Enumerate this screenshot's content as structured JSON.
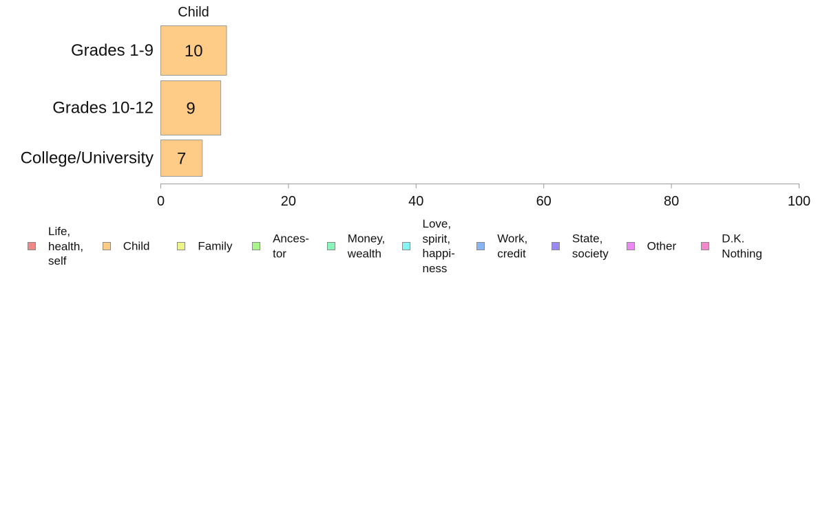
{
  "chart_data": {
    "type": "bar",
    "orientation": "horizontal",
    "panel_title": "Child",
    "categories": [
      "Grades 1-9",
      "Grades 10-12",
      "College/University"
    ],
    "series": [
      {
        "name": "Child",
        "color": "#ffcc88",
        "values": [
          10.3,
          9.4,
          6.5
        ],
        "labels": [
          "10",
          "9",
          "7"
        ]
      }
    ],
    "xlim": [
      0,
      100
    ],
    "xticks": [
      0,
      20,
      40,
      60,
      80,
      100
    ],
    "grid": false,
    "legend_position": "bottom"
  },
  "legend": [
    {
      "label": "Life,\nhealth,\nself",
      "color": "#f08888",
      "icon": "square-swatch"
    },
    {
      "label": "Child",
      "color": "#ffcc88",
      "icon": "square-swatch"
    },
    {
      "label": "Family",
      "color": "#eef588",
      "icon": "square-swatch"
    },
    {
      "label": "Ances-\ntor",
      "color": "#aaf588",
      "icon": "square-swatch"
    },
    {
      "label": "Money,\nwealth",
      "color": "#88f5bb",
      "icon": "square-swatch"
    },
    {
      "label": "Love,\nspirit,\nhappi-\nness",
      "color": "#88f5f5",
      "icon": "square-swatch"
    },
    {
      "label": "Work,\ncredit",
      "color": "#88b5f5",
      "icon": "square-swatch"
    },
    {
      "label": "State,\nsociety",
      "color": "#9988f5",
      "icon": "square-swatch"
    },
    {
      "label": "Other",
      "color": "#ee88f5",
      "icon": "square-swatch"
    },
    {
      "label": "D.K.\nNothing",
      "color": "#f588cc",
      "icon": "square-swatch"
    }
  ]
}
